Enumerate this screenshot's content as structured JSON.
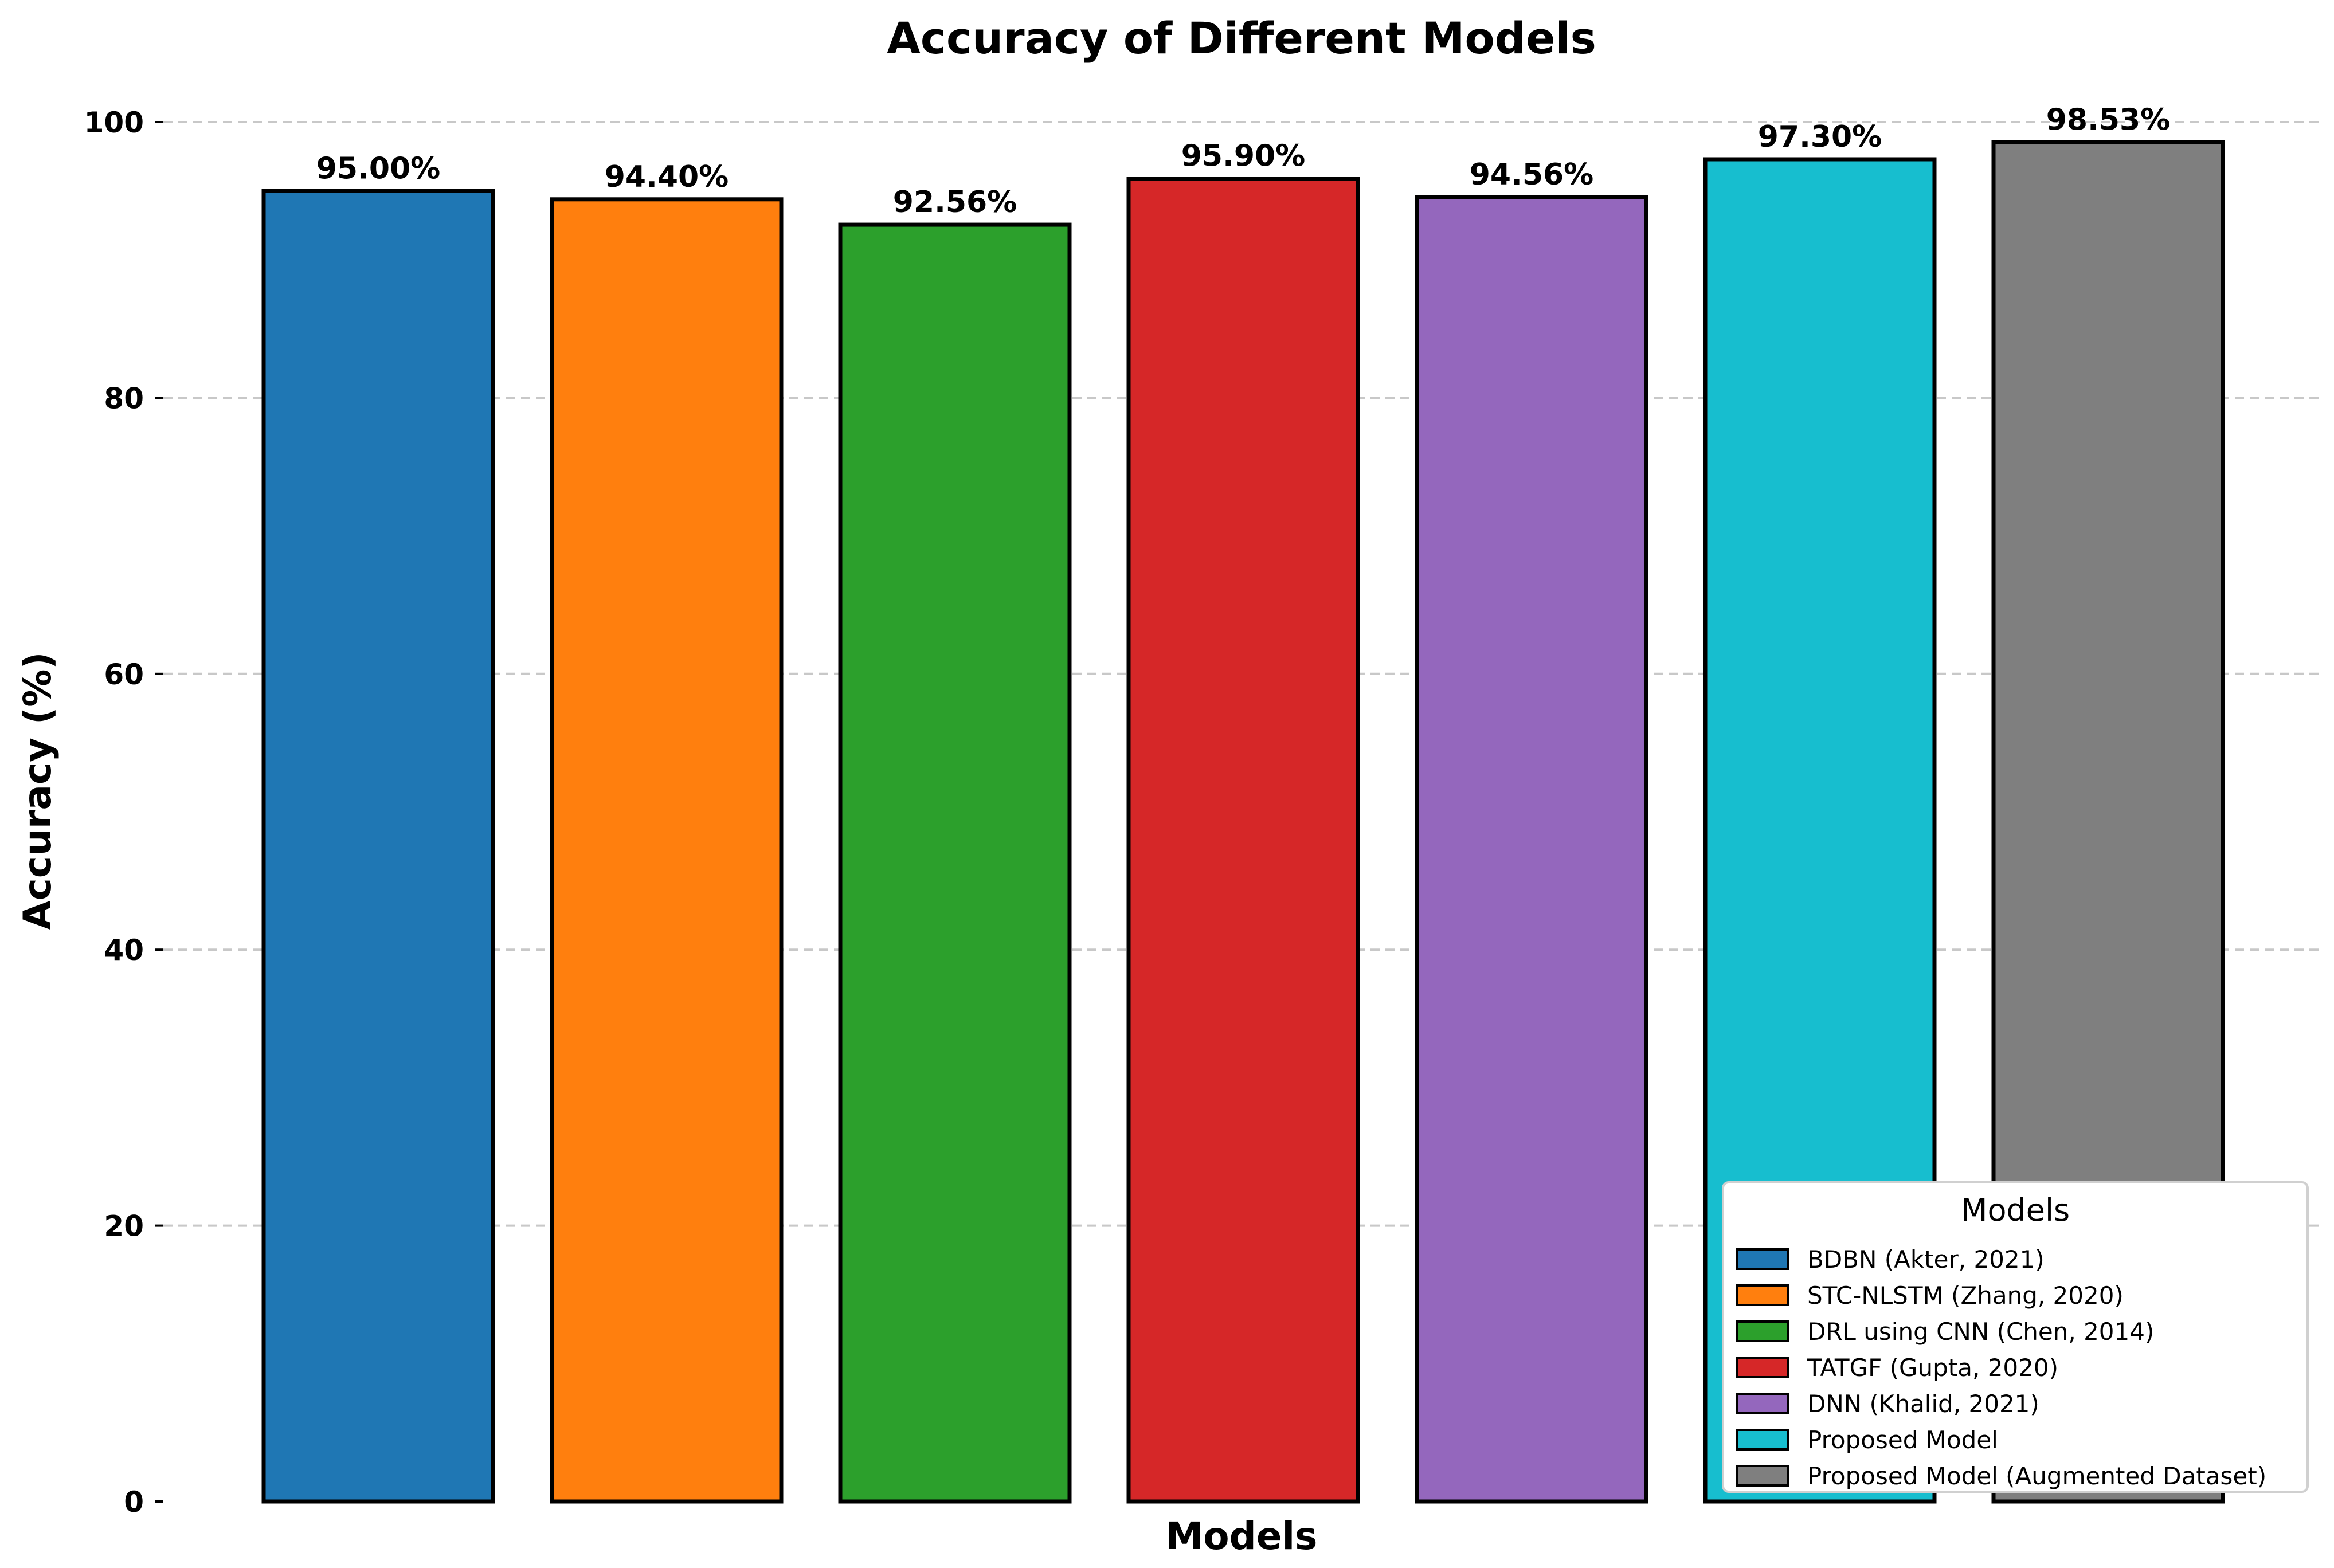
{
  "chart_data": {
    "type": "bar",
    "title": "Accuracy of Different Models",
    "xlabel": "Models",
    "ylabel": "Accuracy (%)",
    "ylim": [
      0,
      100
    ],
    "yticks": [
      0,
      20,
      40,
      60,
      80,
      100
    ],
    "ytick_labels": [
      "0",
      "20",
      "40",
      "60",
      "80",
      "100"
    ],
    "grid": "horizontal dashed",
    "categories": [
      "BDBN (Akter, 2021)",
      "STC-NLSTM (Zhang, 2020)",
      "DRL using CNN (Chen, 2014)",
      "TATGF (Gupta, 2020)",
      "DNN (Khalid, 2021)",
      "Proposed Model",
      "Proposed Model (Augmented Dataset)"
    ],
    "values": [
      95.0,
      94.4,
      92.56,
      95.9,
      94.56,
      97.3,
      98.53
    ],
    "value_labels": [
      "95.00%",
      "94.40%",
      "92.56%",
      "95.90%",
      "94.56%",
      "97.30%",
      "98.53%"
    ],
    "colors": [
      "#1f77b4",
      "#ff7f0e",
      "#2ca02c",
      "#d62728",
      "#9467bd",
      "#17becf",
      "#7f7f7f"
    ],
    "legend": {
      "title": "Models",
      "placement": "lower-right",
      "entries": [
        "BDBN (Akter, 2021)",
        "STC-NLSTM (Zhang, 2020)",
        "DRL using CNN (Chen, 2014)",
        "TATGF (Gupta, 2020)",
        "DNN (Khalid, 2021)",
        "Proposed Model",
        "Proposed Model (Augmented Dataset)"
      ]
    }
  }
}
